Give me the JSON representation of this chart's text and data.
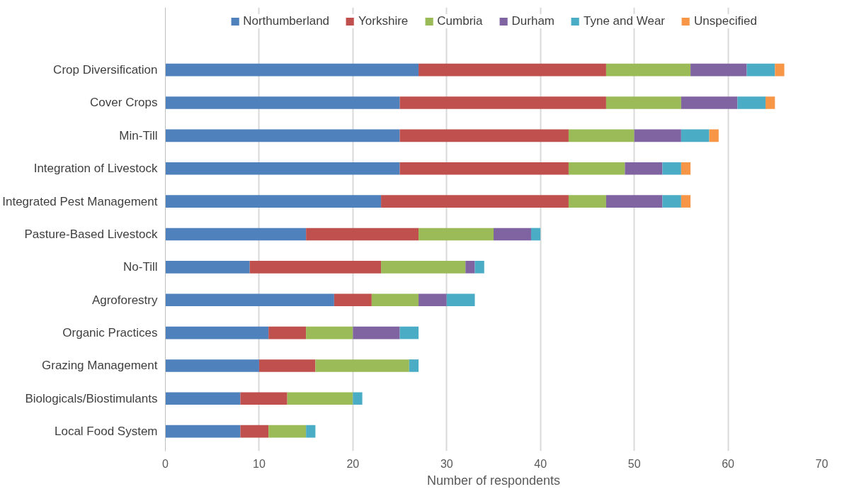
{
  "chart_data": {
    "type": "bar",
    "orientation": "horizontal",
    "stacked": true,
    "xlabel": "Number of respondents",
    "categories": [
      "Crop Diversification",
      "Cover Crops",
      "Min-Till",
      "Integration of Livestock",
      "Integrated Pest Management",
      "Pasture-Based Livestock",
      "No-Till",
      "Agroforestry",
      "Organic Practices",
      "Grazing Management",
      "Biologicals/Biostimulants",
      "Local Food System"
    ],
    "series": [
      {
        "name": "Northumberland",
        "color": "#4f81bd",
        "values": [
          27,
          25,
          25,
          25,
          23,
          15,
          9,
          18,
          11,
          10,
          8,
          8
        ]
      },
      {
        "name": "Yorkshire",
        "color": "#c0504d",
        "values": [
          20,
          22,
          18,
          18,
          20,
          12,
          14,
          4,
          4,
          6,
          5,
          3
        ]
      },
      {
        "name": "Cumbria",
        "color": "#9bbb59",
        "values": [
          9,
          8,
          7,
          6,
          4,
          8,
          9,
          5,
          5,
          10,
          7,
          4
        ]
      },
      {
        "name": "Durham",
        "color": "#8064a2",
        "values": [
          6,
          6,
          5,
          4,
          6,
          4,
          1,
          3,
          5,
          0,
          0,
          0
        ]
      },
      {
        "name": "Tyne and Wear",
        "color": "#4bacc6",
        "values": [
          3,
          3,
          3,
          2,
          2,
          1,
          1,
          3,
          2,
          1,
          1,
          1
        ]
      },
      {
        "name": "Unspecified",
        "color": "#f79646",
        "values": [
          1,
          1,
          1,
          1,
          1,
          0,
          0,
          0,
          0,
          0,
          0,
          0
        ]
      }
    ],
    "xlim": [
      0,
      70
    ],
    "xticks": [
      0,
      10,
      20,
      30,
      40,
      50,
      60,
      70
    ],
    "grid": "x",
    "legend": "top"
  }
}
